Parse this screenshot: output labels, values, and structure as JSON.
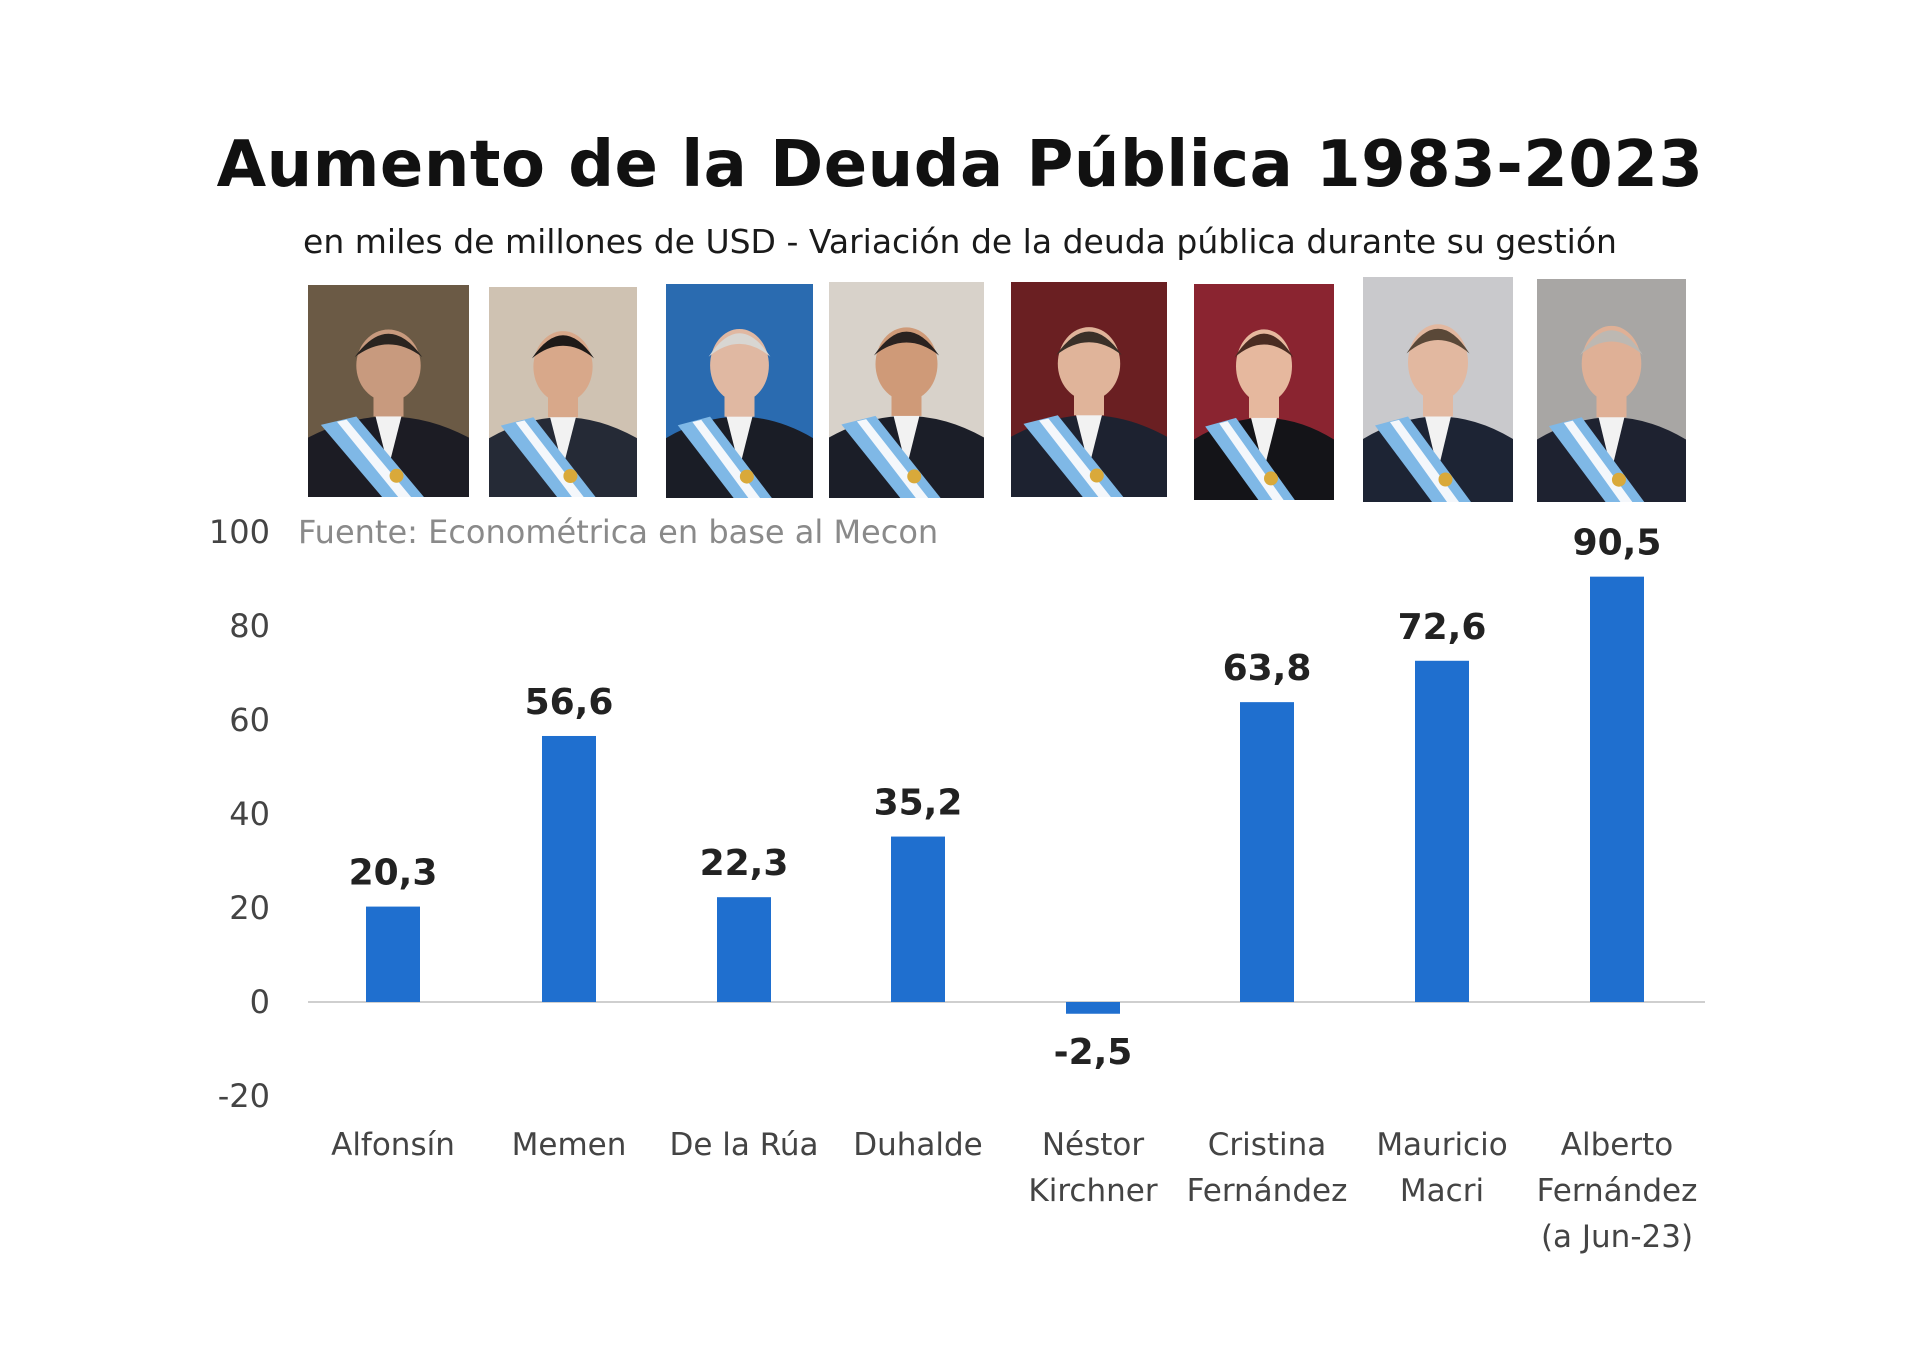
{
  "chart_data": {
    "type": "bar",
    "title": "Aumento de la Deuda Pública 1983-2023",
    "subtitle": "en miles de millones de USD - Variación de la deuda pública durante su gestión",
    "source": "Fuente: Econométrica en base al Mecon",
    "categories": [
      [
        "Alfonsín"
      ],
      [
        "Memen"
      ],
      [
        "De la Rúa"
      ],
      [
        "Duhalde"
      ],
      [
        "Néstor",
        "Kirchner"
      ],
      [
        "Cristina",
        "Fernández"
      ],
      [
        "Mauricio",
        "Macri"
      ],
      [
        "Alberto",
        "Fernández",
        "(a Jun-23)"
      ]
    ],
    "values": [
      20.3,
      56.6,
      22.3,
      35.2,
      -2.5,
      63.8,
      72.6,
      90.5
    ],
    "value_labels": [
      "20,3",
      "56,6",
      "22,3",
      "35,2",
      "-2,5",
      "63,8",
      "72,6",
      "90,5"
    ],
    "ylim": [
      -20,
      100
    ],
    "yticks": [
      100,
      80,
      60,
      40,
      20,
      0,
      -20
    ],
    "bar_color": "#1f6fcf",
    "grid": false
  },
  "portraits": [
    {
      "name": "Alfonsín portrait",
      "bg": "#6b5a45",
      "suit": "#1c1c24",
      "skin": "#c89a7e",
      "hair": "#2a2420"
    },
    {
      "name": "Menem portrait",
      "bg": "#cfc2b2",
      "suit": "#252a36",
      "skin": "#d8a88a",
      "hair": "#1e1a18"
    },
    {
      "name": "De la Rúa portrait",
      "bg": "#2a6bb0",
      "suit": "#1a1d26",
      "skin": "#e0b8a2",
      "hair": "#d8d6d2"
    },
    {
      "name": "Duhalde portrait",
      "bg": "#d8d2ca",
      "suit": "#1b1e28",
      "skin": "#cf9a78",
      "hair": "#2a2220"
    },
    {
      "name": "Néstor Kirchner portrait",
      "bg": "#6a1f22",
      "suit": "#1d2230",
      "skin": "#e0b49a",
      "hair": "#3a3028"
    },
    {
      "name": "Cristina Fernández portrait",
      "bg": "#8a2430",
      "suit": "#141418",
      "skin": "#e6b89e",
      "hair": "#4a2c22"
    },
    {
      "name": "Mauricio Macri portrait",
      "bg": "#c9c9cc",
      "suit": "#1d2434",
      "skin": "#e2b8a0",
      "hair": "#5a4838"
    },
    {
      "name": "Alberto Fernández portrait",
      "bg": "#a8a6a4",
      "suit": "#1e2230",
      "skin": "#dfb096",
      "hair": "#bdb8b2"
    }
  ],
  "sash": {
    "blue": "#7fb8e6",
    "white": "#f4f7fb",
    "sun": "#d9a93a"
  }
}
